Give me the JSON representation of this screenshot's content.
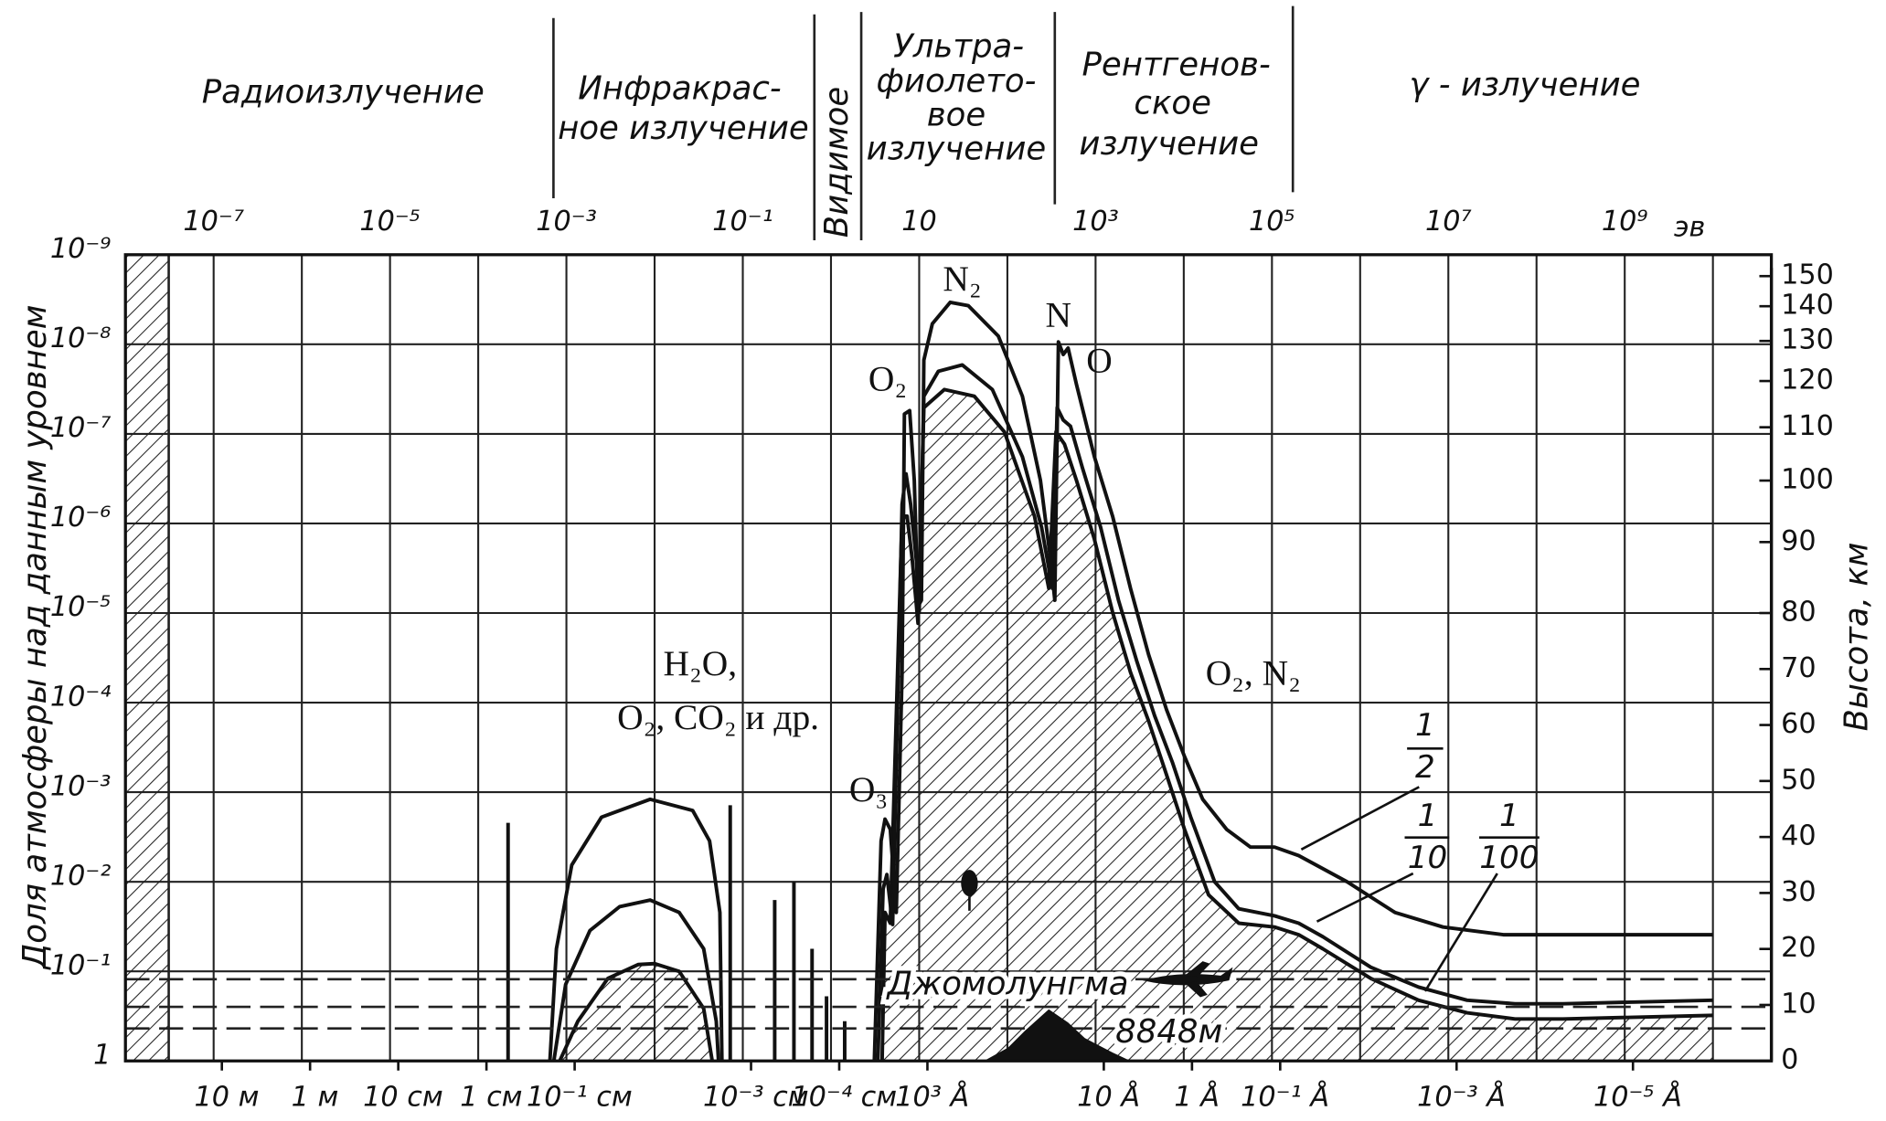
{
  "chart_data": {
    "type": "line",
    "regions": [
      {
        "lines": [
          "Радиоизлучение"
        ]
      },
      {
        "lines": [
          "Инфракрас-",
          "ное излучение"
        ]
      },
      {
        "lines": [
          "Видимое"
        ]
      },
      {
        "lines": [
          "Ультра-",
          "фиолето-",
          "вое",
          "излучение"
        ]
      },
      {
        "lines": [
          "Рентгенов-",
          "ское",
          "излучение"
        ]
      },
      {
        "lines": [
          "γ - излучение"
        ]
      }
    ],
    "x_unit": "эв",
    "y_label": "Доля атмосферы над данным уровнем",
    "y2_label": "Высота, км",
    "log_x": true,
    "log_y": true,
    "grid": true,
    "xlim": [
      1e-08,
      46000000000.0
    ],
    "xticks": [
      {
        "value": 1e-07,
        "label": "10⁻⁷"
      },
      {
        "value": 1e-05,
        "label": "10⁻⁵"
      },
      {
        "value": 0.001,
        "label": "10⁻³"
      },
      {
        "value": 0.1,
        "label": "10⁻¹"
      },
      10,
      {
        "value": 1000,
        "label": "10³"
      },
      {
        "value": 100000,
        "label": "10⁵"
      },
      {
        "value": 10000000,
        "label": "10⁷"
      },
      {
        "value": 1000000000,
        "label": "10⁹"
      }
    ],
    "xminorticks": [
      1e-08,
      1e-06,
      0.0001,
      0.01,
      1,
      100,
      10000,
      1000000,
      100000000,
      10000000000
    ],
    "x2ticks": [
      {
        "value": 10,
        "label": "10 м"
      },
      {
        "value": 1,
        "label": "1 м"
      },
      {
        "value": 0.1,
        "label": "10 см"
      },
      {
        "value": 0.01,
        "label": "1 см"
      },
      {
        "value": 0.001,
        "label": "10⁻¹ см"
      },
      {
        "value": 1e-05,
        "label": "10⁻³ см"
      },
      {
        "value": 1e-06,
        "label": "10⁻⁴ см"
      },
      {
        "value": 1e-07,
        "label": "10³ Å"
      },
      {
        "value": 1e-09,
        "label": "10 Å"
      },
      {
        "value": 1e-10,
        "label": "1 Å"
      },
      {
        "value": 1e-11,
        "label": "10⁻¹ Å"
      },
      {
        "value": 1e-13,
        "label": "10⁻³ Å"
      },
      {
        "value": 1e-15,
        "label": "10⁻⁵ Å"
      }
    ],
    "ylim": [
      1,
      1e-09
    ],
    "yticks": [
      1,
      {
        "value": 0.1,
        "label": "10⁻¹"
      },
      {
        "value": 0.01,
        "label": "10⁻²"
      },
      {
        "value": 0.001,
        "label": "10⁻³"
      },
      {
        "value": 0.0001,
        "label": "10⁻⁴"
      },
      {
        "value": 1e-05,
        "label": "10⁻⁵"
      },
      {
        "value": 1e-06,
        "label": "10⁻⁶"
      },
      {
        "value": 1e-07,
        "label": "10⁻⁷"
      },
      {
        "value": 1e-08,
        "label": "10⁻⁸"
      },
      {
        "value": 1e-09,
        "label": "10⁻⁹"
      }
    ],
    "y2lim": [
      0,
      153
    ],
    "y2ticks": [
      0,
      10,
      20,
      30,
      40,
      50,
      60,
      70,
      80,
      90,
      100,
      110,
      120,
      130,
      140,
      150
    ],
    "series": [
      {
        "fraction": [
          "1",
          "2"
        ],
        "color": "#111111",
        "hatched": false,
        "x": [
          0.000218,
          0.000218,
          null,
          0.00065,
          0.00077,
          0.00115,
          0.0025,
          0.0089,
          0.027,
          0.042,
          0.055,
          0.058,
          null,
          0.072,
          0.072,
          null,
          0.23,
          0.23,
          null,
          0.38,
          0.38,
          null,
          0.61,
          0.61,
          null,
          0.89,
          0.89,
          null,
          1.43,
          1.43,
          null,
          3.1,
          3.7,
          4.1,
          4.7,
          5.5,
          6.4,
          6.8,
          7.8,
          8.8,
          9.7,
          10.6,
          11.3,
          14.1,
          22.5,
          36,
          79,
          148,
          237,
          314,
          345,
          379,
          430,
          488,
          607,
          970,
          1560,
          2490,
          3990,
          6380,
          10200,
          16400,
          30600,
          57000,
          107000,
          201000,
          710000,
          2480000,
          8700000,
          42000000,
          200000000,
          10000000000
        ],
        "values": [
          1,
          0.0022,
          null,
          1,
          0.056,
          0.0065,
          0.0019,
          0.0012,
          0.0016,
          0.0035,
          0.022,
          1,
          null,
          1,
          0.0014,
          null,
          1,
          0.016,
          null,
          1,
          0.01,
          null,
          1,
          0.056,
          null,
          1,
          0.19,
          null,
          1,
          0.36,
          null,
          1,
          0.0035,
          0.002,
          0.0026,
          0.022,
          4.6e-05,
          6e-08,
          5.5e-08,
          3.3e-07,
          8.4e-06,
          7.2e-06,
          1.5e-08,
          5.9e-09,
          3.4e-09,
          3.7e-09,
          8.1e-09,
          3.8e-08,
          3.3e-07,
          2.9e-06,
          7.2e-06,
          9.4e-09,
          1.3e-08,
          1.1e-08,
          2.8e-08,
          1.8e-07,
          8.3e-07,
          5.3e-06,
          2.9e-05,
          0.00012,
          0.0004,
          0.0012,
          0.0026,
          0.0041,
          0.0041,
          0.0051,
          0.01,
          0.022,
          0.032,
          0.039,
          0.039,
          0.039
        ]
      },
      {
        "fraction": [
          "1",
          "10"
        ],
        "color": "#111111",
        "hatched": false,
        "x": [
          0.00072,
          0.00098,
          0.00185,
          0.004,
          0.0089,
          0.019,
          0.036,
          0.05,
          0.053,
          null,
          3.4,
          3.9,
          4.3,
          5.0,
          6.4,
          7.1,
          8.0,
          9.4,
          10,
          11.3,
          16.5,
          30.8,
          67.6,
          148,
          244,
          324,
          367,
          430,
          519,
          710,
          1140,
          1820,
          2920,
          4670,
          7470,
          12000,
          22400,
          42000,
          107000,
          201000,
          377000,
          1320000,
          4600000,
          16300000,
          57000000,
          200000000,
          10000000000
        ],
        "values": [
          1,
          0.14,
          0.035,
          0.019,
          0.016,
          0.022,
          0.056,
          0.36,
          1,
          null,
          1,
          0.012,
          0.0083,
          0.03,
          6.1e-07,
          2.8e-07,
          6.1e-07,
          2.9e-06,
          9.8e-06,
          3.8e-08,
          2e-08,
          1.7e-08,
          3.2e-08,
          1.8e-07,
          1.1e-06,
          5.3e-06,
          5.1e-08,
          7e-08,
          8.2e-08,
          2.4e-07,
          1.1e-06,
          7.2e-06,
          3.4e-05,
          0.00014,
          0.00047,
          0.0019,
          0.01,
          0.02,
          0.024,
          0.029,
          0.041,
          0.09,
          0.15,
          0.21,
          0.23,
          0.23,
          0.21
        ]
      },
      {
        "fraction": [
          "1",
          "100"
        ],
        "color": "#111111",
        "hatched": true,
        "x": [
          0.00084,
          0.00135,
          0.00295,
          0.0065,
          0.01,
          0.019,
          0.036,
          0.045,
          null,
          3.8,
          4.1,
          4.7,
          6.4,
          7.3,
          8.3,
          9.7,
          11.3,
          19.3,
          42.2,
          92.5,
          203,
          295,
          356,
          444,
          607,
          970,
          1560,
          2490,
          3990,
          6380,
          10200,
          19100,
          42000,
          107000,
          201000,
          377000,
          1320000,
          4600000,
          16300000,
          57000000,
          200000000,
          10000000000
        ],
        "values": [
          1,
          0.36,
          0.12,
          0.084,
          0.082,
          0.1,
          0.26,
          1,
          null,
          1,
          0.022,
          0.029,
          8.3e-07,
          8.3e-07,
          2.4e-06,
          1.3e-05,
          5.1e-08,
          3.2e-08,
          3.8e-08,
          9.5e-08,
          8.3e-07,
          5.3e-06,
          9.5e-08,
          1.3e-07,
          3.3e-07,
          1.5e-06,
          9.8e-06,
          4.6e-05,
          0.00016,
          0.00064,
          0.0026,
          0.014,
          0.029,
          0.032,
          0.039,
          0.056,
          0.12,
          0.21,
          0.29,
          0.34,
          0.34,
          0.31
        ]
      }
    ],
    "annotations": {
      "n2": "N₂",
      "n": "N",
      "o": "O",
      "o2": "O₂",
      "o3": "O₃",
      "h2o": "H₂O,",
      "o2co2": "O₂, CO₂ и др.",
      "o2n2": "O₂, N₂",
      "everest": "Джомолунгма",
      "everest_height": "8848м"
    }
  }
}
